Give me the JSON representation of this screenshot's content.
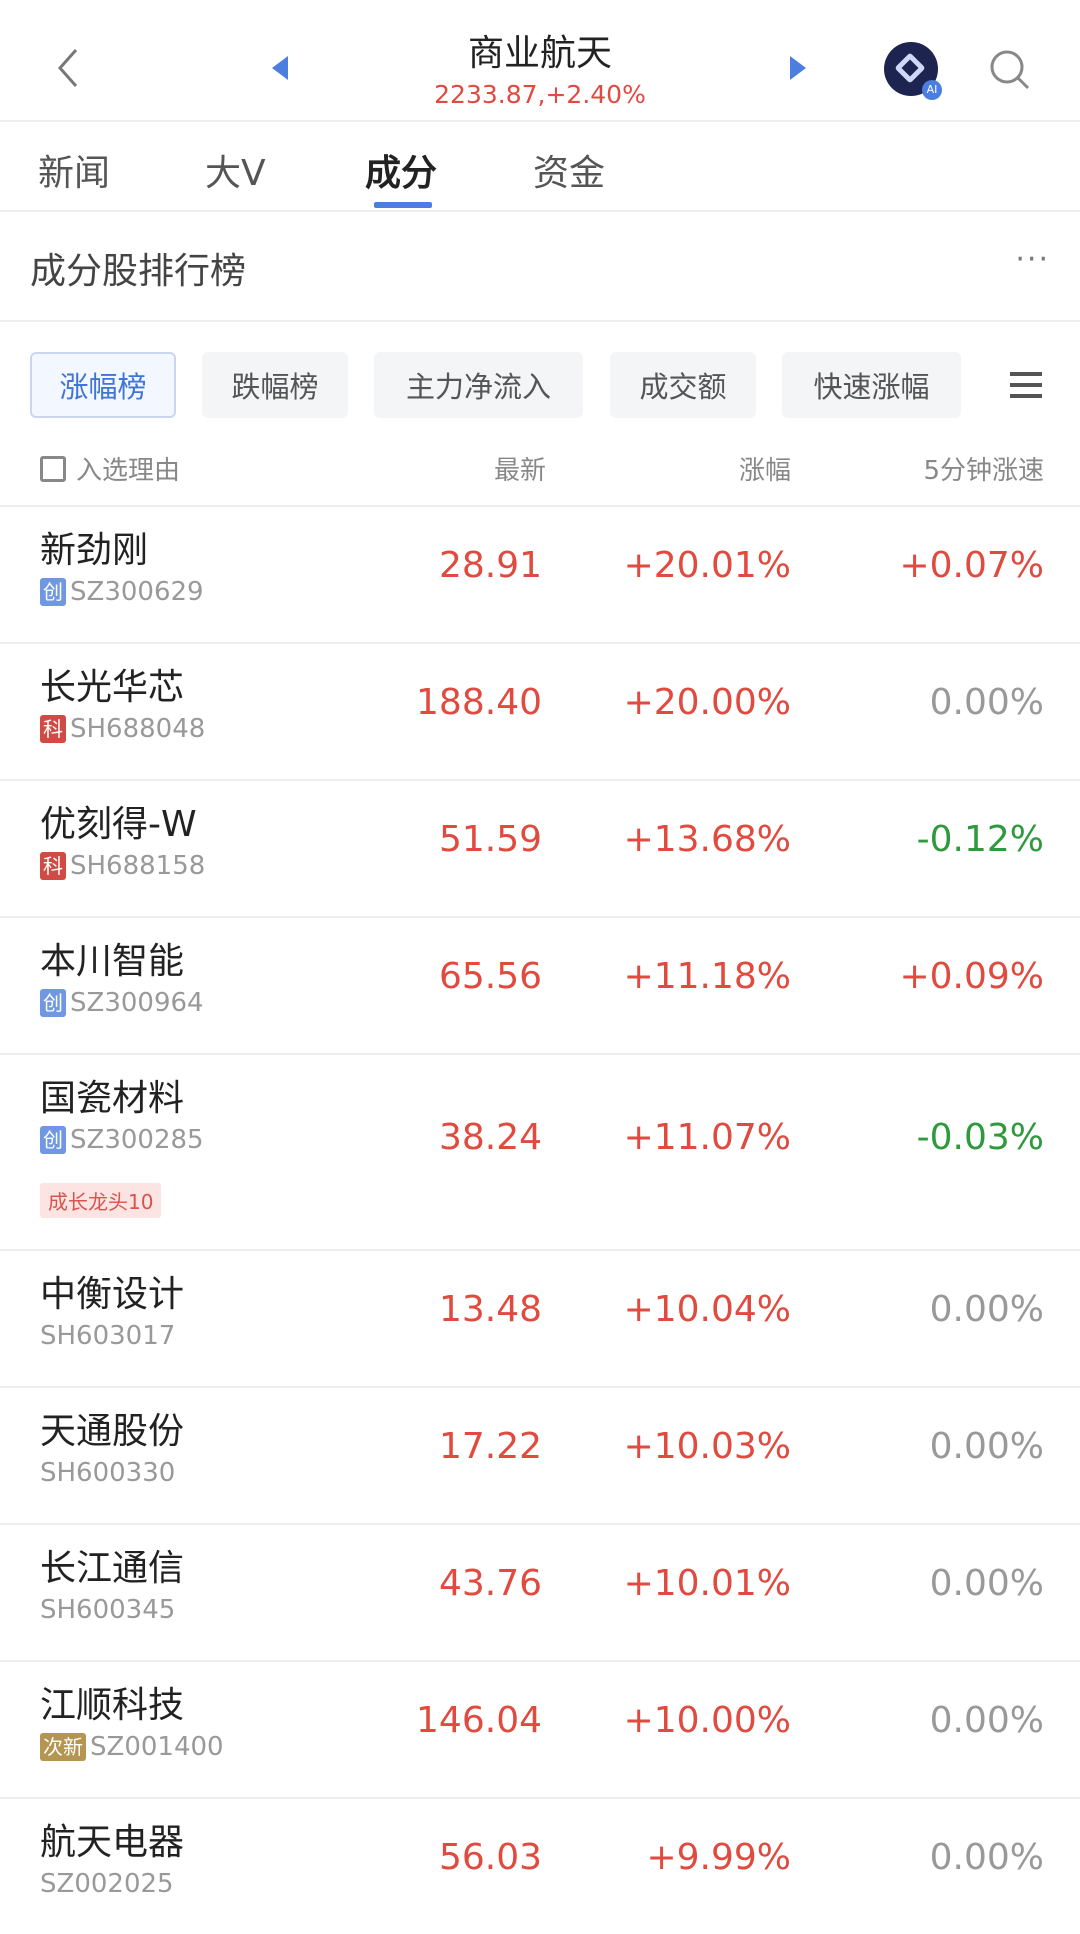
{
  "header": {
    "title": "商业航天",
    "subtitle": "2233.87,+2.40%",
    "ai_badge": "AI"
  },
  "tabs": [
    {
      "label": "新闻"
    },
    {
      "label": "大V"
    },
    {
      "label": "成分",
      "active": true
    },
    {
      "label": "资金"
    }
  ],
  "section": {
    "title": "成分股排行榜",
    "more": "···"
  },
  "filters": [
    {
      "label": "涨幅榜",
      "active": true
    },
    {
      "label": "跌幅榜"
    },
    {
      "label": "主力净流入"
    },
    {
      "label": "成交额"
    },
    {
      "label": "快速涨幅"
    }
  ],
  "columns": {
    "name": "入选理由",
    "price": "最新",
    "change": "涨幅",
    "speed": "5分钟涨速"
  },
  "colors": {
    "up": "#e04a3f",
    "down": "#2f9a3d",
    "flat": "#999999",
    "accent": "#4a7fe0"
  },
  "rows": [
    {
      "name": "新劲刚",
      "badge": "创",
      "code": "SZ300629",
      "price": "28.91",
      "change": "+20.01%",
      "speed": "+0.07%"
    },
    {
      "name": "长光华芯",
      "badge": "科",
      "code": "SH688048",
      "price": "188.40",
      "change": "+20.00%",
      "speed": "0.00%"
    },
    {
      "name": "优刻得-W",
      "badge": "科",
      "code": "SH688158",
      "price": "51.59",
      "change": "+13.68%",
      "speed": "-0.12%"
    },
    {
      "name": "本川智能",
      "badge": "创",
      "code": "SZ300964",
      "price": "65.56",
      "change": "+11.18%",
      "speed": "+0.09%"
    },
    {
      "name": "国瓷材料",
      "badge": "创",
      "code": "SZ300285",
      "tag": "成长龙头10",
      "price": "38.24",
      "change": "+11.07%",
      "speed": "-0.03%"
    },
    {
      "name": "中衡设计",
      "badge": "",
      "code": "SH603017",
      "price": "13.48",
      "change": "+10.04%",
      "speed": "0.00%"
    },
    {
      "name": "天通股份",
      "badge": "",
      "code": "SH600330",
      "price": "17.22",
      "change": "+10.03%",
      "speed": "0.00%"
    },
    {
      "name": "长江通信",
      "badge": "",
      "code": "SH600345",
      "price": "43.76",
      "change": "+10.01%",
      "speed": "0.00%"
    },
    {
      "name": "江顺科技",
      "badge": "次新",
      "code": "SZ001400",
      "price": "146.04",
      "change": "+10.00%",
      "speed": "0.00%"
    },
    {
      "name": "航天电器",
      "badge": "",
      "code": "SZ002025",
      "price": "56.03",
      "change": "+9.99%",
      "speed": "0.00%"
    }
  ]
}
